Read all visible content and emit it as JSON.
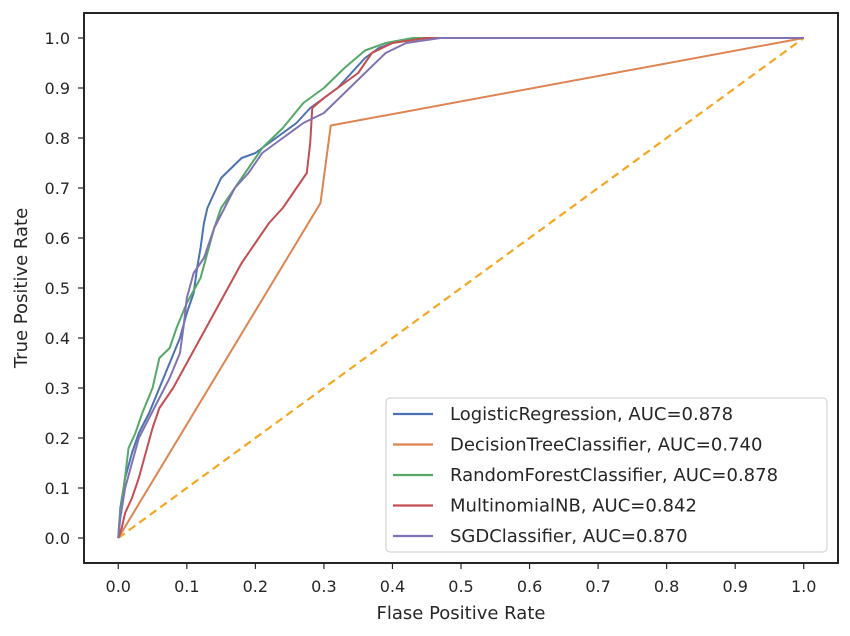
{
  "chart_data": {
    "type": "line",
    "title": "",
    "xlabel": "Flase Positive Rate",
    "ylabel": "True Positive Rate",
    "xlim": [
      -0.05,
      1.05
    ],
    "ylim": [
      -0.05,
      1.05
    ],
    "xticks": [
      "0.0",
      "0.1",
      "0.2",
      "0.3",
      "0.4",
      "0.5",
      "0.6",
      "0.7",
      "0.8",
      "0.9",
      "1.0"
    ],
    "yticks": [
      "0.0",
      "0.1",
      "0.2",
      "0.3",
      "0.4",
      "0.5",
      "0.6",
      "0.7",
      "0.8",
      "0.9",
      "1.0"
    ],
    "grid": false,
    "legend_position": "lower-right",
    "series": [
      {
        "name": "LogisticRegression, AUC=0.878",
        "color": "#4c72b0",
        "points": [
          [
            0,
            0
          ],
          [
            0.003,
            0.06
          ],
          [
            0.01,
            0.12
          ],
          [
            0.02,
            0.17
          ],
          [
            0.03,
            0.21
          ],
          [
            0.045,
            0.25
          ],
          [
            0.06,
            0.3
          ],
          [
            0.075,
            0.35
          ],
          [
            0.09,
            0.4
          ],
          [
            0.1,
            0.45
          ],
          [
            0.11,
            0.49
          ],
          [
            0.115,
            0.54
          ],
          [
            0.12,
            0.58
          ],
          [
            0.125,
            0.63
          ],
          [
            0.13,
            0.66
          ],
          [
            0.14,
            0.69
          ],
          [
            0.15,
            0.72
          ],
          [
            0.165,
            0.74
          ],
          [
            0.18,
            0.76
          ],
          [
            0.2,
            0.77
          ],
          [
            0.22,
            0.79
          ],
          [
            0.24,
            0.81
          ],
          [
            0.26,
            0.83
          ],
          [
            0.28,
            0.86
          ],
          [
            0.3,
            0.88
          ],
          [
            0.32,
            0.9
          ],
          [
            0.34,
            0.93
          ],
          [
            0.36,
            0.96
          ],
          [
            0.38,
            0.98
          ],
          [
            0.41,
            0.995
          ],
          [
            0.45,
            1.0
          ],
          [
            0.6,
            1.0
          ],
          [
            1.0,
            1.0
          ]
        ]
      },
      {
        "name": "DecisionTreeClassifier, AUC=0.740",
        "color": "#dd8452",
        "points": [
          [
            0,
            0
          ],
          [
            0.295,
            0.67
          ],
          [
            0.31,
            0.825
          ],
          [
            1.0,
            1.0
          ]
        ]
      },
      {
        "name": "RandomForestClassifier, AUC=0.878",
        "color": "#55a868",
        "points": [
          [
            0,
            0
          ],
          [
            0.002,
            0.04
          ],
          [
            0.008,
            0.1
          ],
          [
            0.015,
            0.18
          ],
          [
            0.025,
            0.21
          ],
          [
            0.035,
            0.25
          ],
          [
            0.05,
            0.3
          ],
          [
            0.06,
            0.36
          ],
          [
            0.075,
            0.38
          ],
          [
            0.085,
            0.42
          ],
          [
            0.1,
            0.47
          ],
          [
            0.12,
            0.52
          ],
          [
            0.13,
            0.57
          ],
          [
            0.14,
            0.62
          ],
          [
            0.15,
            0.66
          ],
          [
            0.17,
            0.7
          ],
          [
            0.19,
            0.74
          ],
          [
            0.21,
            0.78
          ],
          [
            0.24,
            0.82
          ],
          [
            0.27,
            0.87
          ],
          [
            0.3,
            0.9
          ],
          [
            0.33,
            0.94
          ],
          [
            0.36,
            0.975
          ],
          [
            0.39,
            0.99
          ],
          [
            0.43,
            1.0
          ],
          [
            1.0,
            1.0
          ]
        ]
      },
      {
        "name": "MultinomialNB, AUC=0.842",
        "color": "#c44e52",
        "points": [
          [
            0,
            0
          ],
          [
            0.005,
            0.02
          ],
          [
            0.01,
            0.05
          ],
          [
            0.02,
            0.08
          ],
          [
            0.03,
            0.12
          ],
          [
            0.04,
            0.17
          ],
          [
            0.05,
            0.22
          ],
          [
            0.06,
            0.26
          ],
          [
            0.08,
            0.3
          ],
          [
            0.1,
            0.35
          ],
          [
            0.12,
            0.4
          ],
          [
            0.14,
            0.45
          ],
          [
            0.16,
            0.5
          ],
          [
            0.18,
            0.55
          ],
          [
            0.2,
            0.59
          ],
          [
            0.22,
            0.63
          ],
          [
            0.24,
            0.66
          ],
          [
            0.26,
            0.7
          ],
          [
            0.275,
            0.73
          ],
          [
            0.28,
            0.79
          ],
          [
            0.283,
            0.86
          ],
          [
            0.3,
            0.88
          ],
          [
            0.32,
            0.9
          ],
          [
            0.35,
            0.93
          ],
          [
            0.37,
            0.97
          ],
          [
            0.4,
            0.99
          ],
          [
            0.45,
            1.0
          ],
          [
            1.0,
            1.0
          ]
        ]
      },
      {
        "name": "SGDClassifier, AUC=0.870",
        "color": "#8172b3",
        "points": [
          [
            0,
            0
          ],
          [
            0.003,
            0.04
          ],
          [
            0.01,
            0.1
          ],
          [
            0.02,
            0.15
          ],
          [
            0.03,
            0.2
          ],
          [
            0.045,
            0.24
          ],
          [
            0.06,
            0.28
          ],
          [
            0.075,
            0.32
          ],
          [
            0.09,
            0.37
          ],
          [
            0.095,
            0.42
          ],
          [
            0.1,
            0.48
          ],
          [
            0.11,
            0.53
          ],
          [
            0.125,
            0.56
          ],
          [
            0.14,
            0.62
          ],
          [
            0.155,
            0.66
          ],
          [
            0.17,
            0.7
          ],
          [
            0.19,
            0.73
          ],
          [
            0.21,
            0.77
          ],
          [
            0.24,
            0.8
          ],
          [
            0.27,
            0.83
          ],
          [
            0.3,
            0.85
          ],
          [
            0.33,
            0.89
          ],
          [
            0.36,
            0.93
          ],
          [
            0.39,
            0.97
          ],
          [
            0.42,
            0.99
          ],
          [
            0.47,
            1.0
          ],
          [
            1.0,
            1.0
          ]
        ]
      }
    ],
    "reference_line": {
      "color": "#f5a623",
      "style": "dashed",
      "points": [
        [
          0,
          0
        ],
        [
          1,
          1
        ]
      ]
    }
  }
}
